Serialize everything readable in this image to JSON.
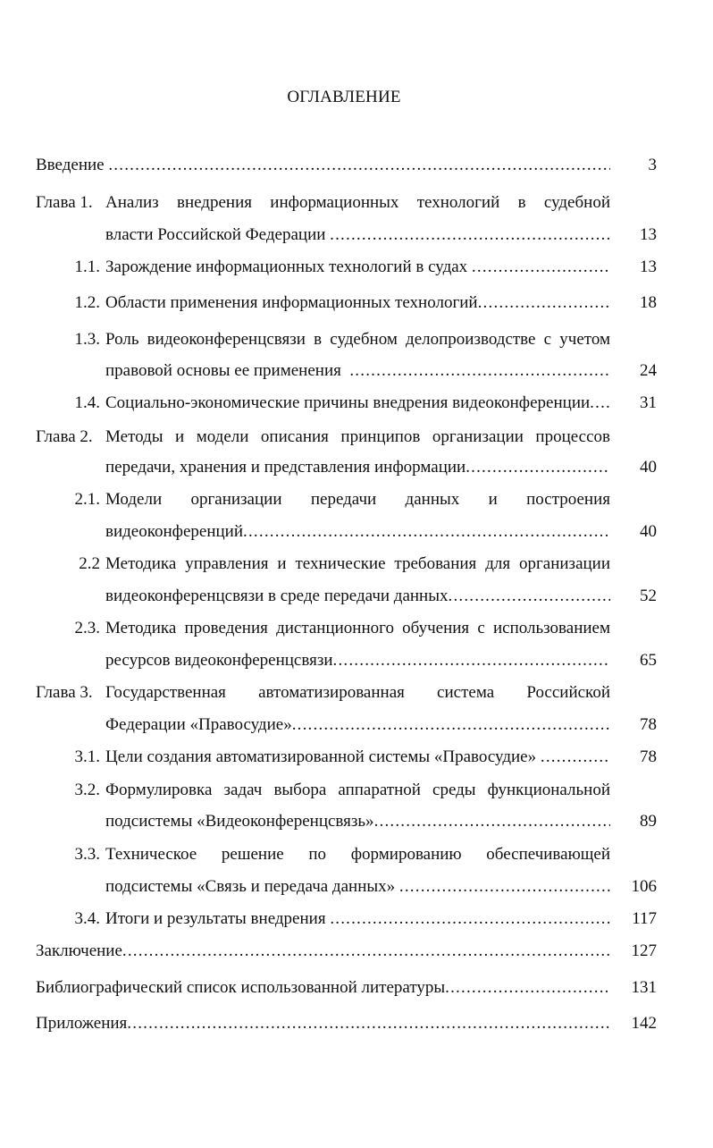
{
  "title": "ОГЛАВЛЕНИЕ",
  "entries": [
    {
      "num": "",
      "lines": [
        "Введение "
      ],
      "page": "3"
    },
    {
      "num": "Глава 1.",
      "lines": [
        "Анализ  внедрения  информационных  технологий  в  судебной",
        "власти Российской Федерации "
      ],
      "page": "13"
    },
    {
      "num": "1.1.",
      "lines": [
        "Зарождение информационных технологий в судах "
      ],
      "page": "13"
    },
    {
      "num": "1.2.",
      "lines": [
        "Области применения информационных технологий"
      ],
      "page": "18"
    },
    {
      "num": "1.3.",
      "lines": [
        "Роль видеоконференцсвязи в судебном делопроизводстве с учетом",
        "правовой основы ее применения  "
      ],
      "page": "24"
    },
    {
      "num": "1.4.",
      "lines": [
        "Социально-экономические причины внедрения видеоконференции"
      ],
      "page": "31"
    },
    {
      "num": "Глава 2.",
      "lines": [
        "Методы и модели описания принципов организации процессов",
        "передачи, хранения и представления информации"
      ],
      "page": "40"
    },
    {
      "num": "2.1.",
      "lines": [
        "Модели организации передачи данных и построения",
        "видеоконференций"
      ],
      "page": "40"
    },
    {
      "num": "2.2",
      "lines": [
        "Методика  управления  и технические требования для организации",
        "видеоконференцсвязи в среде передачи данных"
      ],
      "page": "52"
    },
    {
      "num": "2.3.",
      "lines": [
        "Методика проведения дистанционного обучения с использованием",
        "ресурсов видеоконференцсвязи"
      ],
      "page": "65"
    },
    {
      "num": "Глава 3.",
      "lines": [
        "Государственная автоматизированная система Российской",
        "Федерации «Правосудие»"
      ],
      "page": "78"
    },
    {
      "num": "3.1.",
      "lines": [
        "Цели создания автоматизированной системы «Правосудие» "
      ],
      "page": "78"
    },
    {
      "num": "3.2.",
      "lines": [
        "Формулировка задач выбора аппаратной среды функциональной",
        "подсистемы «Видеоконференцсвязь»"
      ],
      "page": "89"
    },
    {
      "num": "3.3.",
      "lines": [
        "Техническое решение по формированию обеспечивающей",
        "подсистемы «Связь и передача данных» "
      ],
      "page": "106"
    },
    {
      "num": "3.4.",
      "lines": [
        "Итоги и результаты внедрения "
      ],
      "page": "117"
    },
    {
      "num": "",
      "lines": [
        "Заключение"
      ],
      "page": "127"
    },
    {
      "num": "",
      "lines": [
        "Библиографический список использованной литературы"
      ],
      "page": "131"
    },
    {
      "num": "",
      "lines": [
        "Приложения"
      ],
      "page": "142"
    }
  ]
}
